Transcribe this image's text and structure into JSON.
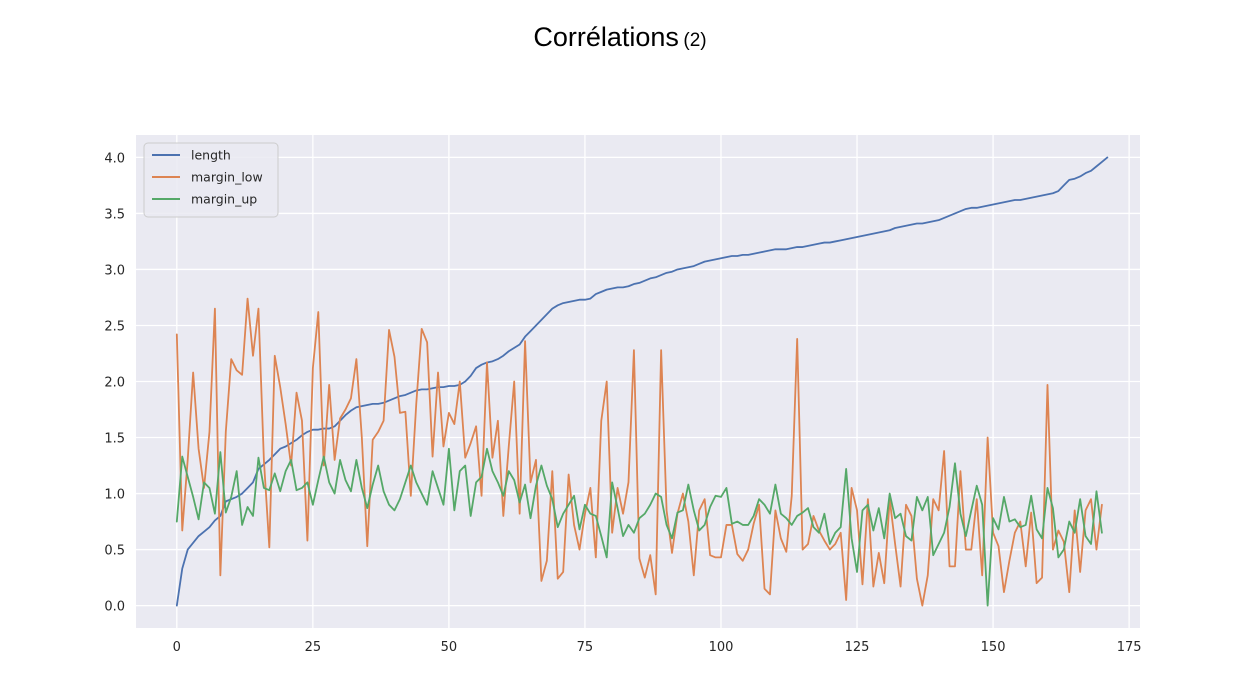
{
  "slide": {
    "title": "Corrélations",
    "title_suffix": "(2)"
  },
  "chart_data": {
    "type": "line",
    "title": "",
    "xlabel": "",
    "ylabel": "",
    "xlim": [
      -7.5,
      177
    ],
    "ylim": [
      -0.2,
      4.2
    ],
    "x_ticks": [
      0,
      25,
      50,
      75,
      100,
      125,
      150,
      175
    ],
    "y_ticks": [
      0.0,
      0.5,
      1.0,
      1.5,
      2.0,
      2.5,
      3.0,
      3.5,
      4.0
    ],
    "y_tick_labels": [
      "0.0",
      "0.5",
      "1.0",
      "1.5",
      "2.0",
      "2.5",
      "3.0",
      "3.5",
      "4.0"
    ],
    "grid": true,
    "legend_position": "upper-left",
    "colors": {
      "plot_background": "#eaeaf2",
      "grid": "#ffffff"
    },
    "series": [
      {
        "name": "length",
        "color": "#4c72b0",
        "values": [
          0,
          0.33,
          0.5,
          0.56,
          0.62,
          0.66,
          0.7,
          0.76,
          0.8,
          0.93,
          0.95,
          0.97,
          1.0,
          1.05,
          1.1,
          1.22,
          1.26,
          1.3,
          1.35,
          1.4,
          1.42,
          1.45,
          1.48,
          1.52,
          1.55,
          1.57,
          1.57,
          1.58,
          1.58,
          1.6,
          1.65,
          1.7,
          1.74,
          1.77,
          1.78,
          1.79,
          1.8,
          1.8,
          1.81,
          1.83,
          1.85,
          1.87,
          1.88,
          1.9,
          1.92,
          1.93,
          1.93,
          1.94,
          1.95,
          1.95,
          1.96,
          1.96,
          1.97,
          2.0,
          2.05,
          2.12,
          2.15,
          2.17,
          2.18,
          2.2,
          2.23,
          2.27,
          2.3,
          2.33,
          2.4,
          2.45,
          2.5,
          2.55,
          2.6,
          2.65,
          2.68,
          2.7,
          2.71,
          2.72,
          2.73,
          2.73,
          2.74,
          2.78,
          2.8,
          2.82,
          2.83,
          2.84,
          2.84,
          2.85,
          2.87,
          2.88,
          2.9,
          2.92,
          2.93,
          2.95,
          2.97,
          2.98,
          3.0,
          3.01,
          3.02,
          3.03,
          3.05,
          3.07,
          3.08,
          3.09,
          3.1,
          3.11,
          3.12,
          3.12,
          3.13,
          3.13,
          3.14,
          3.15,
          3.16,
          3.17,
          3.18,
          3.18,
          3.18,
          3.19,
          3.2,
          3.2,
          3.21,
          3.22,
          3.23,
          3.24,
          3.24,
          3.25,
          3.26,
          3.27,
          3.28,
          3.29,
          3.3,
          3.31,
          3.32,
          3.33,
          3.34,
          3.35,
          3.37,
          3.38,
          3.39,
          3.4,
          3.41,
          3.41,
          3.42,
          3.43,
          3.44,
          3.46,
          3.48,
          3.5,
          3.52,
          3.54,
          3.55,
          3.55,
          3.56,
          3.57,
          3.58,
          3.59,
          3.6,
          3.61,
          3.62,
          3.62,
          3.63,
          3.64,
          3.65,
          3.66,
          3.67,
          3.68,
          3.7,
          3.75,
          3.8,
          3.81,
          3.83,
          3.86,
          3.88,
          3.92,
          3.96,
          4.0
        ]
      },
      {
        "name": "margin_low",
        "color": "#dd8452",
        "values": [
          2.42,
          0.67,
          1.3,
          2.08,
          1.4,
          1.05,
          1.55,
          2.65,
          0.27,
          1.55,
          2.2,
          2.1,
          2.06,
          2.74,
          2.23,
          2.65,
          1.3,
          0.52,
          2.23,
          1.95,
          1.62,
          1.25,
          1.9,
          1.65,
          0.58,
          2.12,
          2.62,
          1.25,
          1.97,
          1.3,
          1.67,
          1.75,
          1.85,
          2.2,
          1.5,
          0.53,
          1.48,
          1.55,
          1.65,
          2.46,
          2.22,
          1.72,
          1.73,
          0.98,
          1.8,
          2.47,
          2.35,
          1.33,
          2.08,
          1.42,
          1.72,
          1.62,
          2.0,
          1.32,
          1.45,
          1.6,
          0.98,
          2.17,
          1.32,
          1.65,
          0.8,
          1.42,
          2.0,
          0.82,
          2.36,
          1.1,
          1.3,
          0.22,
          0.4,
          1.2,
          0.24,
          0.3,
          1.17,
          0.72,
          0.5,
          0.82,
          1.05,
          0.43,
          1.65,
          2.0,
          0.65,
          1.05,
          0.82,
          1.1,
          2.28,
          0.42,
          0.25,
          0.45,
          0.1,
          2.28,
          0.85,
          0.47,
          0.82,
          1.0,
          0.75,
          0.27,
          0.85,
          0.95,
          0.45,
          0.43,
          0.43,
          0.72,
          0.72,
          0.46,
          0.4,
          0.5,
          0.73,
          0.9,
          0.15,
          0.1,
          0.85,
          0.6,
          0.48,
          0.98,
          2.38,
          0.5,
          0.55,
          0.8,
          0.67,
          0.58,
          0.5,
          0.55,
          0.65,
          0.05,
          1.05,
          0.85,
          0.19,
          0.95,
          0.17,
          0.47,
          0.2,
          0.95,
          0.55,
          0.17,
          0.9,
          0.8,
          0.24,
          0.0,
          0.27,
          0.95,
          0.85,
          1.38,
          0.35,
          0.35,
          1.2,
          0.5,
          0.5,
          0.95,
          0.27,
          1.5,
          0.65,
          0.53,
          0.12,
          0.4,
          0.65,
          0.75,
          0.35,
          0.83,
          0.2,
          0.25,
          1.97,
          0.5,
          0.67,
          0.57,
          0.12,
          0.85,
          0.3,
          0.85,
          0.95,
          0.5,
          0.9
        ]
      },
      {
        "name": "margin_up",
        "color": "#55a868",
        "values": [
          0.75,
          1.33,
          1.15,
          0.97,
          0.77,
          1.1,
          1.05,
          0.82,
          1.37,
          0.83,
          0.97,
          1.2,
          0.72,
          0.88,
          0.8,
          1.32,
          1.05,
          1.03,
          1.18,
          1.02,
          1.2,
          1.3,
          1.03,
          1.05,
          1.1,
          0.9,
          1.12,
          1.33,
          1.1,
          1.0,
          1.3,
          1.12,
          1.02,
          1.3,
          1.05,
          0.87,
          1.08,
          1.25,
          1.02,
          0.9,
          0.85,
          0.95,
          1.1,
          1.25,
          1.1,
          1.0,
          0.9,
          1.2,
          1.05,
          0.9,
          1.4,
          0.85,
          1.2,
          1.25,
          0.8,
          1.1,
          1.15,
          1.4,
          1.2,
          1.1,
          0.98,
          1.2,
          1.12,
          0.92,
          1.08,
          0.78,
          1.07,
          1.25,
          1.07,
          0.95,
          0.7,
          0.82,
          0.9,
          0.98,
          0.68,
          0.9,
          0.82,
          0.8,
          0.62,
          0.43,
          1.1,
          0.87,
          0.62,
          0.72,
          0.65,
          0.78,
          0.82,
          0.9,
          1.0,
          0.97,
          0.72,
          0.6,
          0.83,
          0.85,
          1.08,
          0.85,
          0.67,
          0.72,
          0.88,
          0.98,
          0.97,
          1.05,
          0.73,
          0.75,
          0.72,
          0.72,
          0.8,
          0.95,
          0.9,
          0.82,
          1.08,
          0.82,
          0.78,
          0.72,
          0.8,
          0.83,
          0.87,
          0.7,
          0.65,
          0.82,
          0.55,
          0.65,
          0.7,
          1.22,
          0.6,
          0.3,
          0.85,
          0.9,
          0.67,
          0.87,
          0.6,
          1.0,
          0.78,
          0.82,
          0.62,
          0.58,
          0.97,
          0.85,
          0.97,
          0.45,
          0.55,
          0.65,
          0.88,
          1.27,
          0.82,
          0.62,
          0.85,
          1.07,
          0.9,
          0.0,
          0.78,
          0.68,
          0.97,
          0.75,
          0.77,
          0.7,
          0.72,
          0.98,
          0.68,
          0.6,
          1.05,
          0.87,
          0.43,
          0.5,
          0.75,
          0.65,
          0.95,
          0.62,
          0.55,
          1.02,
          0.65
        ]
      }
    ]
  }
}
